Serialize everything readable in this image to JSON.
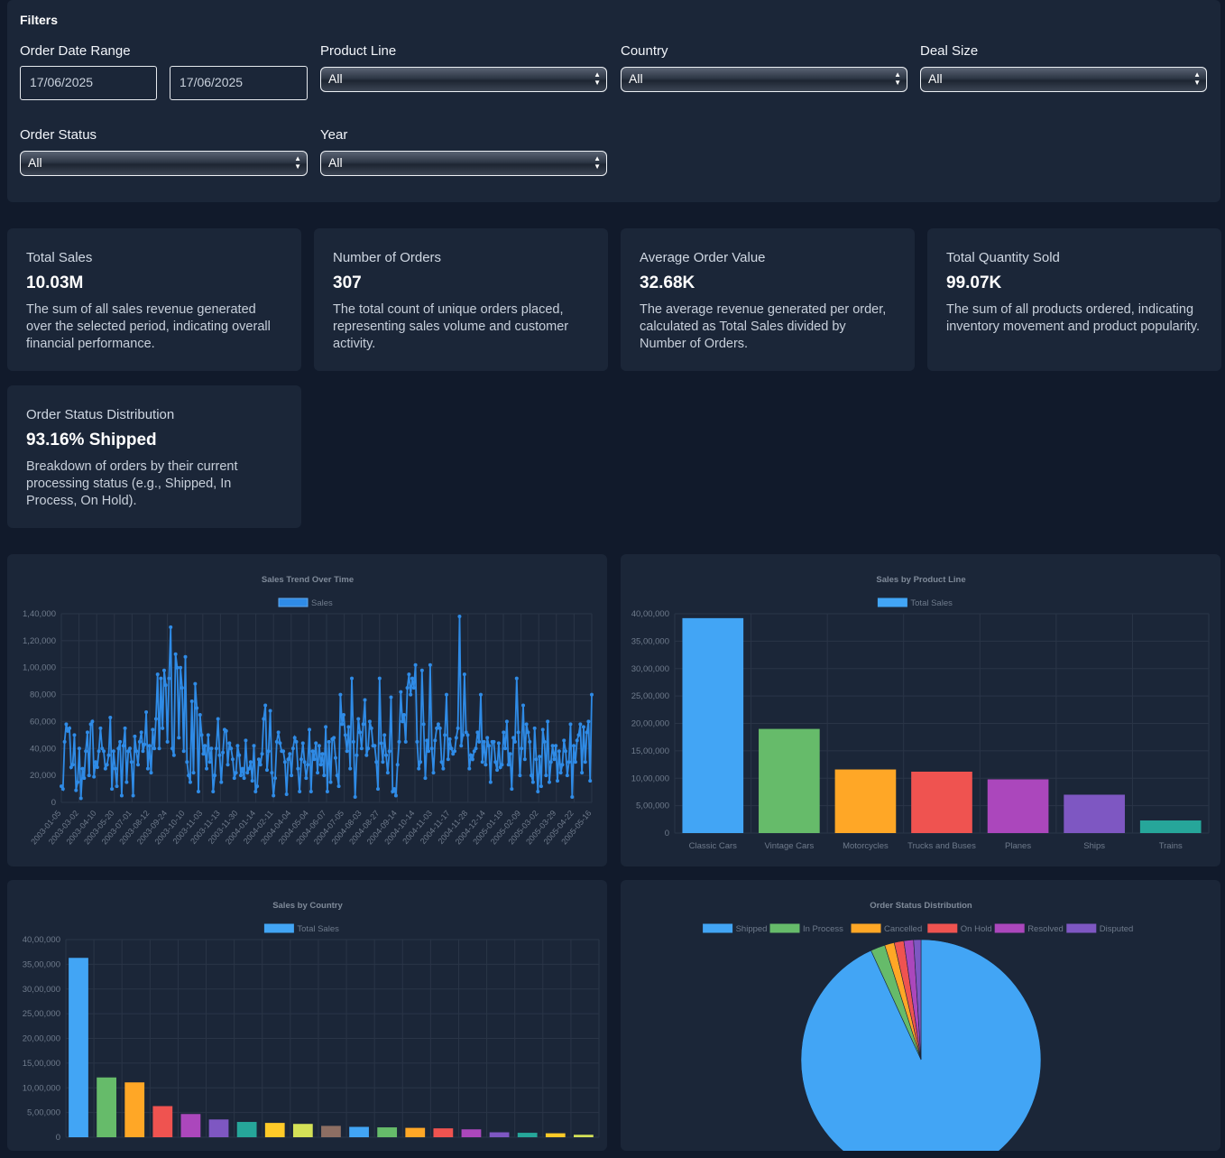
{
  "filters": {
    "title": "Filters",
    "order_date_range": {
      "label": "Order Date Range",
      "from": "17/06/2025",
      "to": "17/06/2025"
    },
    "product_line": {
      "label": "Product Line",
      "value": "All"
    },
    "country": {
      "label": "Country",
      "value": "All"
    },
    "deal_size": {
      "label": "Deal Size",
      "value": "All"
    },
    "order_status": {
      "label": "Order Status",
      "value": "All"
    },
    "year": {
      "label": "Year",
      "value": "All"
    }
  },
  "kpis": [
    {
      "title": "Total Sales",
      "value": "10.03M",
      "desc": "The sum of all sales revenue generated over the selected period, indicating overall financial performance."
    },
    {
      "title": "Number of Orders",
      "value": "307",
      "desc": "The total count of unique orders placed, representing sales volume and customer activity."
    },
    {
      "title": "Average Order Value",
      "value": "32.68K",
      "desc": "The average revenue generated per order, calculated as Total Sales divided by Number of Orders."
    },
    {
      "title": "Total Quantity Sold",
      "value": "99.07K",
      "desc": "The sum of all products ordered, indicating inventory movement and product popularity."
    },
    {
      "title": "Order Status Distribution",
      "value": "93.16% Shipped",
      "desc": "Breakdown of orders by their current processing status (e.g., Shipped, In Process, On Hold)."
    }
  ],
  "chart_data": [
    {
      "type": "line",
      "title": "Sales Trend Over Time",
      "series": [
        {
          "name": "Sales",
          "color": "#2f8be6"
        }
      ],
      "yticks": [
        "0",
        "20,000",
        "40,000",
        "60,000",
        "80,000",
        "1,00,000",
        "1,20,000",
        "1,40,000"
      ],
      "ylim": [
        0,
        140000
      ],
      "xticks": [
        "2003-01-05",
        "2003-03-02",
        "2003-04-10",
        "2003-05-20",
        "2003-07-01",
        "2003-08-12",
        "2003-09-24",
        "2003-10-10",
        "2003-11-03",
        "2003-11-13",
        "2003-11-30",
        "2004-01-14",
        "2004-02-11",
        "2004-04-04",
        "2004-05-04",
        "2004-06-07",
        "2004-07-05",
        "2004-08-03",
        "2004-08-27",
        "2004-09-14",
        "2004-10-14",
        "2004-11-03",
        "2004-11-17",
        "2004-11-28",
        "2004-12-14",
        "2005-01-19",
        "2005-02-09",
        "2005-03-02",
        "2005-03-29",
        "2005-04-22",
        "2005-05-16"
      ],
      "values": [
        12000,
        10000,
        45000,
        58000,
        53000,
        55000,
        26000,
        28000,
        50000,
        9000,
        15000,
        40000,
        3000,
        25000,
        18000,
        38000,
        52000,
        20000,
        58000,
        60000,
        19000,
        30000,
        26000,
        38000,
        55000,
        40000,
        38000,
        25000,
        28000,
        35000,
        63000,
        10000,
        38000,
        25000,
        12000,
        40000,
        45000,
        5000,
        42000,
        55000,
        15000,
        38000,
        40000,
        30000,
        5000,
        49000,
        38000,
        28000,
        45000,
        52000,
        38000,
        43000,
        67000,
        25000,
        42000,
        22000,
        54000,
        40000,
        62000,
        95000,
        40000,
        92000,
        55000,
        98000,
        87000,
        45000,
        92000,
        130000,
        40000,
        35000,
        110000,
        100000,
        48000,
        100000,
        85000,
        38000,
        108000,
        30000,
        20000,
        15000,
        75000,
        22000,
        88000,
        70000,
        8000,
        65000,
        50000,
        36000,
        42000,
        25000,
        50000,
        30000,
        40000,
        8000,
        20000,
        40000,
        62000,
        35000,
        15000,
        37000,
        54000,
        53000,
        28000,
        44000,
        40000,
        32000,
        18000,
        22000,
        42000,
        35000,
        20000,
        25000,
        18000,
        46000,
        22000,
        25000,
        30000,
        16000,
        42000,
        8000,
        12000,
        32000,
        28000,
        36000,
        62000,
        72000,
        24000,
        38000,
        68000,
        22000,
        5000,
        18000,
        45000,
        52000,
        44000,
        38000,
        38000,
        30000,
        6000,
        32000,
        36000,
        20000,
        40000,
        48000,
        45000,
        25000,
        8000,
        32000,
        44000,
        30000,
        18000,
        28000,
        54000,
        8000,
        38000,
        32000,
        44000,
        22000,
        42000,
        28000,
        36000,
        20000,
        56000,
        8000,
        45000,
        15000,
        47000,
        48000,
        33000,
        20000,
        12000,
        80000,
        58000,
        65000,
        50000,
        38000,
        56000,
        25000,
        92000,
        45000,
        4000,
        35000,
        62000,
        52000,
        40000,
        58000,
        76000,
        35000,
        40000,
        60000,
        55000,
        42000,
        42000,
        30000,
        10000,
        92000,
        44000,
        30000,
        50000,
        35000,
        22000,
        38000,
        78000,
        8000,
        10000,
        5000,
        28000,
        45000,
        82000,
        60000,
        65000,
        45000,
        85000,
        95000,
        80000,
        92000,
        85000,
        102000,
        45000,
        25000,
        30000,
        98000,
        58000,
        18000,
        46000,
        38000,
        102000,
        40000,
        22000,
        46000,
        55000,
        58000,
        55000,
        30000,
        25000,
        50000,
        80000,
        32000,
        47000,
        40000,
        36000,
        38000,
        48000,
        55000,
        138000,
        42000,
        50000,
        95000,
        52000,
        50000,
        25000,
        35000,
        32000,
        38000,
        40000,
        52000,
        45000,
        80000,
        30000,
        45000,
        28000,
        48000,
        42000,
        15000,
        45000,
        45000,
        30000,
        24000,
        44000,
        26000,
        28000,
        52000,
        40000,
        60000,
        28000,
        36000,
        10000,
        48000,
        45000,
        92000,
        52000,
        20000,
        40000,
        72000,
        32000,
        58000,
        52000,
        45000,
        20000,
        15000,
        55000,
        32000,
        8000,
        34000,
        12000,
        54000,
        45000,
        20000,
        60000,
        15000,
        30000,
        42000,
        32000,
        42000,
        16000,
        38000,
        22000,
        28000,
        46000,
        38000,
        20000,
        30000,
        58000,
        4000,
        42000,
        30000,
        46000,
        50000,
        58000,
        22000,
        56000,
        30000,
        52000,
        60000,
        16000,
        80000
      ]
    },
    {
      "type": "bar",
      "title": "Sales by Product Line",
      "series": [
        {
          "name": "Total Sales"
        }
      ],
      "categories": [
        "Classic Cars",
        "Vintage Cars",
        "Motorcycles",
        "Trucks and Buses",
        "Planes",
        "Ships",
        "Trains"
      ],
      "values": [
        3920000,
        1900000,
        1160000,
        1120000,
        980000,
        700000,
        230000
      ],
      "colors": [
        "#42a5f5",
        "#66bb6a",
        "#ffa726",
        "#ef5350",
        "#ab47bc",
        "#7e57c2",
        "#26a69a"
      ],
      "yticks": [
        "0",
        "5,00,000",
        "10,00,000",
        "15,00,000",
        "20,00,000",
        "25,00,000",
        "30,00,000",
        "35,00,000",
        "40,00,000"
      ],
      "ylim": [
        0,
        4000000
      ]
    },
    {
      "type": "bar",
      "title": "Sales by Country",
      "series": [
        {
          "name": "Total Sales"
        }
      ],
      "values": [
        3630000,
        1210000,
        1110000,
        630000,
        470000,
        360000,
        310000,
        290000,
        270000,
        230000,
        210000,
        200000,
        190000,
        180000,
        160000,
        100000,
        90000,
        80000,
        50000
      ],
      "colors": [
        "#42a5f5",
        "#66bb6a",
        "#ffa726",
        "#ef5350",
        "#ab47bc",
        "#7e57c2",
        "#26a69a",
        "#ffca28",
        "#d4e157",
        "#8d6e63",
        "#42a5f5",
        "#66bb6a",
        "#ffa726",
        "#ef5350",
        "#ab47bc",
        "#7e57c2",
        "#26a69a",
        "#ffca28",
        "#d4e157"
      ],
      "yticks": [
        "0",
        "5,00,000",
        "10,00,000",
        "15,00,000",
        "20,00,000",
        "25,00,000",
        "30,00,000",
        "35,00,000",
        "40,00,000"
      ],
      "ylim": [
        0,
        4000000
      ]
    },
    {
      "type": "pie",
      "title": "Order Status Distribution",
      "categories": [
        "Shipped",
        "In Process",
        "Cancelled",
        "On Hold",
        "Resolved",
        "Disputed"
      ],
      "values": [
        93.16,
        1.95,
        1.3,
        1.3,
        1.3,
        0.99
      ],
      "colors": [
        "#42a5f5",
        "#66bb6a",
        "#ffa726",
        "#ef5350",
        "#ab47bc",
        "#7e57c2"
      ]
    }
  ]
}
